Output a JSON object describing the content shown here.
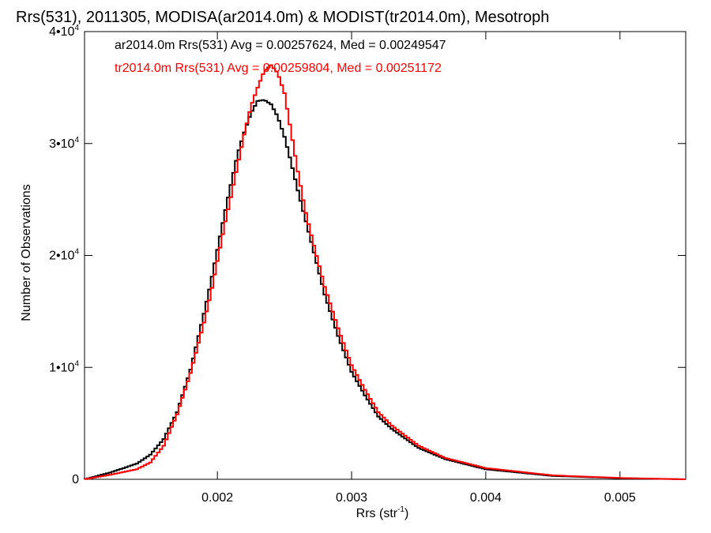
{
  "chart_data": {
    "type": "line",
    "title": "Rrs(531), 2011305, MODISA(ar2014.0m) & MODIST(tr2014.0m), Mesotroph",
    "xlabel": "Rrs (str",
    "xlabel_sup": "-1",
    "xlabel_close": ")",
    "ylabel": "Number of Observations",
    "xlim": [
      0.00101,
      0.00549
    ],
    "ylim": [
      0,
      40000
    ],
    "xticks": [
      {
        "value": 0.002,
        "label": "0.002"
      },
      {
        "value": 0.003,
        "label": "0.003"
      },
      {
        "value": 0.004,
        "label": "0.004"
      },
      {
        "value": 0.005,
        "label": "0.005"
      }
    ],
    "yticks": [
      {
        "value": 0,
        "label": "0",
        "sup": ""
      },
      {
        "value": 10000,
        "label": "1•10",
        "sup": "4"
      },
      {
        "value": 20000,
        "label": "2•10",
        "sup": "4"
      },
      {
        "value": 30000,
        "label": "3•10",
        "sup": "4"
      },
      {
        "value": 40000,
        "label": "4•10",
        "sup": "4"
      }
    ],
    "grid": false,
    "legend_position": "top-left",
    "series": [
      {
        "name": "ar2014.0m Rrs(531) Avg = 0.00257624, Med = 0.00249547",
        "color": "#000000",
        "x": [
          0.00101,
          0.0012,
          0.0014,
          0.0015,
          0.0016,
          0.0017,
          0.0018,
          0.0019,
          0.00195,
          0.002,
          0.00205,
          0.0021,
          0.00215,
          0.0022,
          0.00225,
          0.0023,
          0.00235,
          0.0024,
          0.00245,
          0.0025,
          0.00255,
          0.0026,
          0.00265,
          0.0027,
          0.0028,
          0.0029,
          0.003,
          0.0031,
          0.0032,
          0.0033,
          0.0035,
          0.0037,
          0.004,
          0.0045,
          0.005,
          0.00549
        ],
        "y": [
          0,
          600,
          1400,
          2200,
          3600,
          6000,
          9800,
          14800,
          17500,
          20500,
          23500,
          26300,
          29000,
          31000,
          32700,
          33800,
          33900,
          33500,
          32400,
          30600,
          28300,
          25800,
          23500,
          21200,
          16500,
          12800,
          9600,
          7500,
          5600,
          4500,
          2800,
          1800,
          900,
          300,
          100,
          0
        ]
      },
      {
        "name": "tr2014.0m Rrs(531) Avg = 0.00259804, Med = 0.00251172",
        "color": "#ff0000",
        "x": [
          0.00101,
          0.0012,
          0.0014,
          0.0015,
          0.0016,
          0.0017,
          0.0018,
          0.0019,
          0.00195,
          0.002,
          0.00205,
          0.0021,
          0.00215,
          0.0022,
          0.00225,
          0.0023,
          0.00235,
          0.0024,
          0.00245,
          0.0025,
          0.00255,
          0.0026,
          0.00265,
          0.0027,
          0.0028,
          0.0029,
          0.003,
          0.0031,
          0.0032,
          0.0033,
          0.0035,
          0.0037,
          0.004,
          0.0045,
          0.005,
          0.00549
        ],
        "y": [
          0,
          400,
          900,
          1500,
          3000,
          5800,
          9500,
          14000,
          16500,
          19500,
          22500,
          25200,
          28000,
          30800,
          33300,
          35000,
          36500,
          37000,
          36300,
          34500,
          31000,
          27500,
          24300,
          21800,
          17200,
          13500,
          10200,
          8000,
          6000,
          4800,
          3000,
          1900,
          1000,
          350,
          120,
          0
        ]
      }
    ]
  }
}
